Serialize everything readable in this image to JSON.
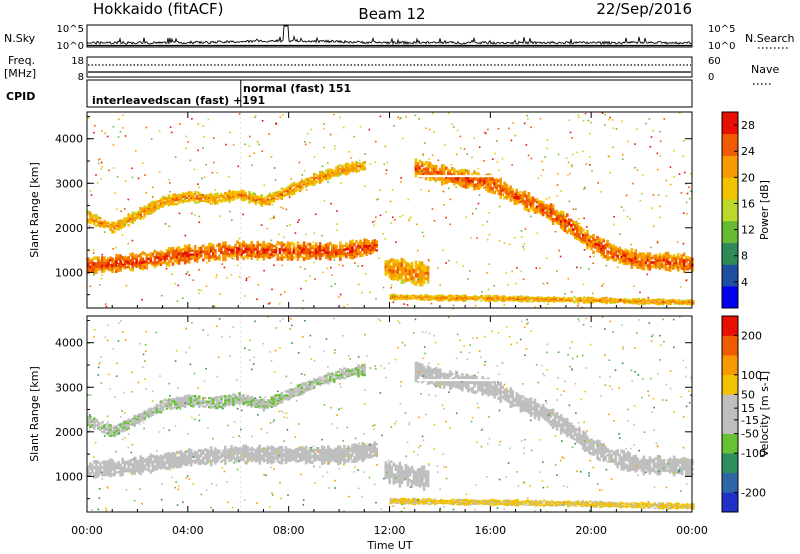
{
  "header": {
    "station": "Hokkaido (fitACF)",
    "beam": "Beam 12",
    "date": "22/Sep/2016"
  },
  "top_panel": {
    "left_label": "N.Sky",
    "right_label": "N.Search",
    "left_ticks": [
      "10^5",
      "10^0"
    ],
    "right_ticks": [
      "10^5",
      "10^0"
    ]
  },
  "freq_panel": {
    "label_line1": "Freq.",
    "label_line2": "[MHz]",
    "left_ticks": [
      "18",
      "8"
    ],
    "right_ticks": [
      "60",
      "0"
    ],
    "right_label": "Nave"
  },
  "cpid_panel": {
    "label": "CPID",
    "segments": [
      {
        "text": "interleavedscan (fast) +191",
        "start_hour": 0,
        "end_hour": 6.1
      },
      {
        "text": "normal (fast) 151",
        "start_hour": 6.1,
        "end_hour": 24
      }
    ]
  },
  "colors": {
    "power_scale": [
      "#0000ee",
      "#1e4fa0",
      "#2e8b57",
      "#66bb33",
      "#bcd82a",
      "#f2c200",
      "#f79a00",
      "#f05a00",
      "#e81000"
    ],
    "velocity_scale": [
      "#2030c8",
      "#2f66a8",
      "#2f8f5c",
      "#66c233",
      "#bfbfbf",
      "#bfbfbf",
      "#f2c200",
      "#f79a00",
      "#f05a00",
      "#e81000"
    ]
  },
  "chart_data": [
    {
      "type": "heatmap",
      "panel": "power",
      "title": "",
      "xlabel": "",
      "ylabel": "Slant Range [km]",
      "xlim": [
        0,
        24
      ],
      "ylim": [
        200,
        4600
      ],
      "x_tick_hours": [
        0,
        4,
        8,
        12,
        16,
        20,
        24
      ],
      "y_ticks": [
        1000,
        2000,
        3000,
        4000
      ],
      "colorbar": {
        "label": "Power [dB]",
        "range": [
          0,
          30
        ],
        "tick_values": [
          4,
          8,
          12,
          16,
          20,
          24,
          28
        ],
        "tick_labels": [
          "4",
          "8",
          "12",
          "16",
          "20",
          "24",
          "28"
        ]
      },
      "echo_bands": [
        {
          "name": "main band",
          "points": [
            [
              0,
              1150
            ],
            [
              2,
              1250
            ],
            [
              4,
              1420
            ],
            [
              6,
              1500
            ],
            [
              8,
              1480
            ],
            [
              10,
              1480
            ],
            [
              11.5,
              1600
            ]
          ],
          "halfwidth_km": 170,
          "value": 25
        },
        {
          "name": "midnight patch",
          "points": [
            [
              11.8,
              1100
            ],
            [
              12.8,
              1000
            ],
            [
              13.5,
              950
            ]
          ],
          "halfwidth_km": 230,
          "value": 22
        },
        {
          "name": "upper arc early",
          "points": [
            [
              0,
              2250
            ],
            [
              1,
              2000
            ],
            [
              2,
              2300
            ],
            [
              3,
              2600
            ],
            [
              4,
              2700
            ],
            [
              5,
              2650
            ],
            [
              6,
              2750
            ],
            [
              7,
              2600
            ],
            [
              8,
              2850
            ],
            [
              9,
              3100
            ],
            [
              10,
              3300
            ],
            [
              11,
              3400
            ]
          ],
          "halfwidth_km": 110,
          "value": 21
        },
        {
          "name": "dusk arc",
          "points": [
            [
              13,
              3350
            ],
            [
              14,
              3200
            ],
            [
              15,
              3100
            ],
            [
              16,
              3000
            ],
            [
              17,
              2700
            ],
            [
              18,
              2450
            ],
            [
              19,
              2100
            ],
            [
              20,
              1650
            ],
            [
              21,
              1400
            ],
            [
              22,
              1250
            ],
            [
              23,
              1250
            ],
            [
              24,
              1200
            ]
          ],
          "halfwidth_km": 180,
          "value": 24
        },
        {
          "name": "near-range echoes",
          "points": [
            [
              12,
              450
            ],
            [
              14,
              430
            ],
            [
              16,
              420
            ],
            [
              18,
              400
            ],
            [
              20,
              380
            ],
            [
              22,
              350
            ],
            [
              24,
              330
            ]
          ],
          "halfwidth_km": 60,
          "value": 21
        }
      ]
    },
    {
      "type": "heatmap",
      "panel": "velocity",
      "title": "",
      "xlabel": "Time UT",
      "ylabel": "Slant Range [km]",
      "xlim": [
        0,
        24
      ],
      "ylim": [
        200,
        4600
      ],
      "x_tick_labels": [
        "00:00",
        "04:00",
        "08:00",
        "12:00",
        "16:00",
        "20:00",
        "00:00"
      ],
      "x_tick_hours": [
        0,
        4,
        8,
        12,
        16,
        20,
        24
      ],
      "y_ticks": [
        1000,
        2000,
        3000,
        4000
      ],
      "colorbar": {
        "label": "Velocity [m s-1]",
        "range": [
          -250,
          250
        ],
        "tick_values": [
          200,
          100,
          50,
          15,
          -15,
          -50,
          -100,
          -200
        ],
        "tick_labels": [
          "200",
          "100",
          "50",
          "15",
          "-15",
          "-50",
          "-100",
          "-200"
        ]
      },
      "echo_bands": [
        {
          "name": "main band",
          "points": [
            [
              0,
              1150
            ],
            [
              2,
              1250
            ],
            [
              4,
              1420
            ],
            [
              6,
              1500
            ],
            [
              8,
              1480
            ],
            [
              10,
              1480
            ],
            [
              11.5,
              1600
            ]
          ],
          "halfwidth_km": 170,
          "value": 0
        },
        {
          "name": "midnight patch",
          "points": [
            [
              11.8,
              1100
            ],
            [
              12.8,
              1000
            ],
            [
              13.5,
              950
            ]
          ],
          "halfwidth_km": 230,
          "value": -10
        },
        {
          "name": "upper arc early",
          "points": [
            [
              0,
              2250
            ],
            [
              1,
              2000
            ],
            [
              2,
              2300
            ],
            [
              3,
              2600
            ],
            [
              4,
              2700
            ],
            [
              5,
              2650
            ],
            [
              6,
              2750
            ],
            [
              7,
              2600
            ],
            [
              8,
              2850
            ],
            [
              9,
              3100
            ],
            [
              10,
              3300
            ],
            [
              11,
              3400
            ]
          ],
          "halfwidth_km": 110,
          "value": -40
        },
        {
          "name": "dusk arc",
          "points": [
            [
              13,
              3350
            ],
            [
              14,
              3200
            ],
            [
              15,
              3100
            ],
            [
              16,
              3000
            ],
            [
              17,
              2700
            ],
            [
              18,
              2450
            ],
            [
              19,
              2100
            ],
            [
              20,
              1650
            ],
            [
              21,
              1400
            ],
            [
              22,
              1250
            ],
            [
              23,
              1250
            ],
            [
              24,
              1200
            ]
          ],
          "halfwidth_km": 180,
          "value": 0
        },
        {
          "name": "near-range echoes",
          "points": [
            [
              12,
              450
            ],
            [
              14,
              430
            ],
            [
              16,
              420
            ],
            [
              18,
              400
            ],
            [
              20,
              380
            ],
            [
              22,
              350
            ],
            [
              24,
              330
            ]
          ],
          "halfwidth_km": 60,
          "value": 60
        }
      ]
    }
  ],
  "time_axis_label": "Time UT"
}
